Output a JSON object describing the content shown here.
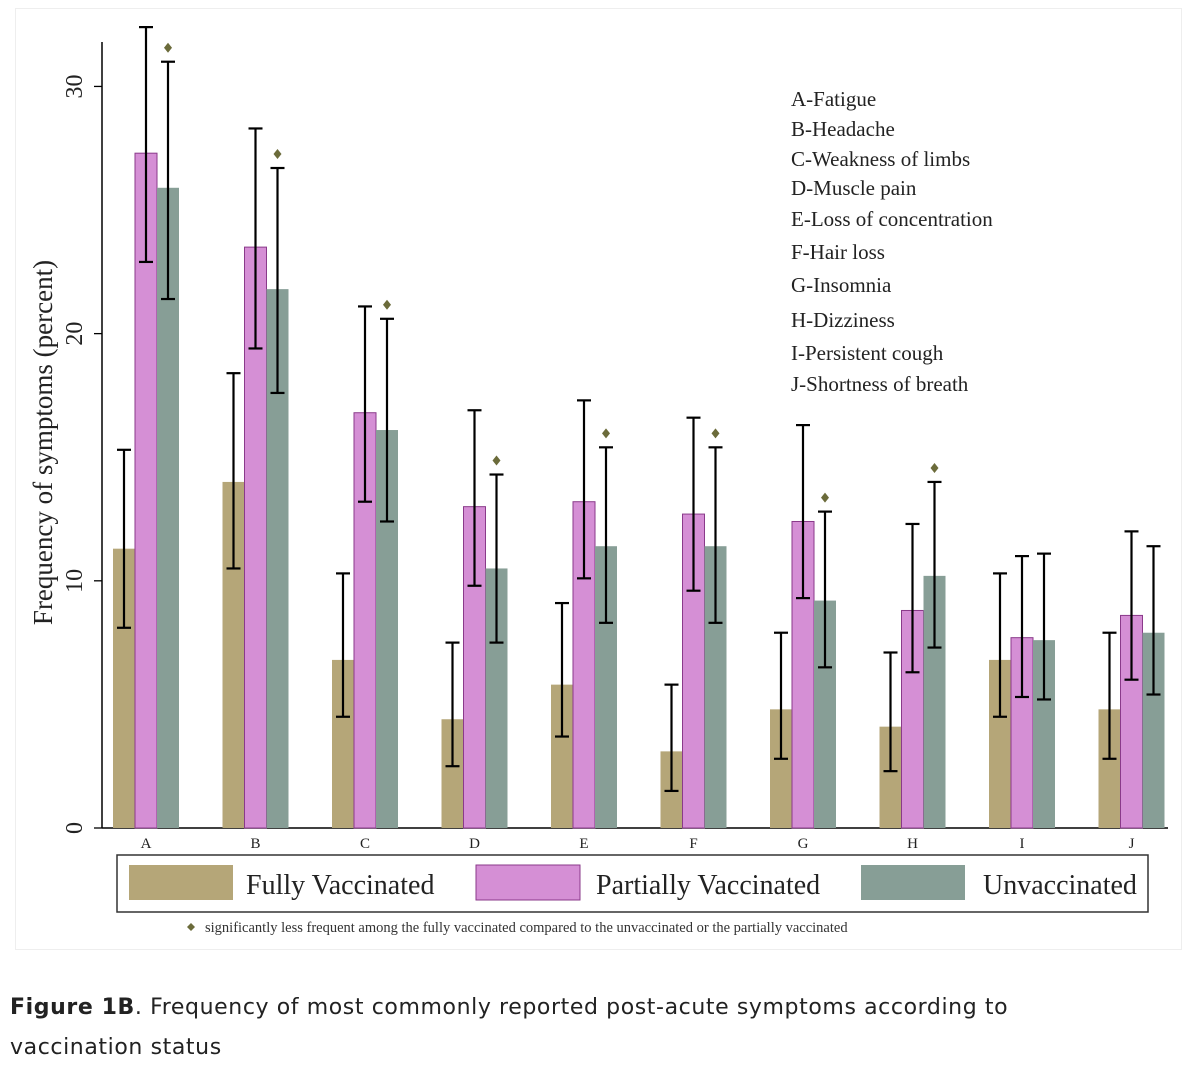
{
  "chart_data": {
    "type": "bar",
    "ylabel": "Frequency of symptoms (percent)",
    "ylim": [
      0,
      32
    ],
    "yticks": [
      0,
      10,
      20,
      30
    ],
    "categories": [
      "A",
      "B",
      "C",
      "D",
      "E",
      "F",
      "G",
      "H",
      "I",
      "J"
    ],
    "category_names": [
      "A-Fatigue",
      "B-Headache",
      "C-Weakness of limbs",
      "D-Muscle pain",
      "E-Loss of concentration",
      "F-Hair loss",
      "G-Insomnia",
      "H-Dizziness",
      "I-Persistent cough",
      "J-Shortness of breath"
    ],
    "series": [
      {
        "name": "Fully Vaccinated",
        "color": "#b5a678",
        "values": [
          11.3,
          14.0,
          6.8,
          4.4,
          5.8,
          3.1,
          4.8,
          4.1,
          6.8,
          4.8
        ],
        "ci_low": [
          8.1,
          10.5,
          4.5,
          2.5,
          3.7,
          1.5,
          2.8,
          2.3,
          4.5,
          2.8
        ],
        "ci_high": [
          15.3,
          18.4,
          10.3,
          7.5,
          9.1,
          5.8,
          7.9,
          7.1,
          10.3,
          7.9
        ]
      },
      {
        "name": "Partially Vaccinated",
        "color": "#d58fd5",
        "values": [
          27.3,
          23.5,
          16.8,
          13.0,
          13.2,
          12.7,
          12.4,
          8.8,
          7.7,
          8.6
        ],
        "ci_low": [
          22.9,
          19.4,
          13.2,
          9.8,
          10.1,
          9.6,
          9.3,
          6.3,
          5.3,
          6.0
        ],
        "ci_high": [
          32.4,
          28.3,
          21.1,
          16.9,
          17.3,
          16.6,
          16.3,
          12.3,
          11.0,
          12.0
        ]
      },
      {
        "name": "Unvaccinated",
        "color": "#879e96",
        "values": [
          25.9,
          21.8,
          16.1,
          10.5,
          11.4,
          11.4,
          9.2,
          10.2,
          7.6,
          7.9
        ],
        "ci_low": [
          21.4,
          17.6,
          12.4,
          7.5,
          8.3,
          8.3,
          6.5,
          7.3,
          5.2,
          5.4
        ],
        "ci_high": [
          31.0,
          26.7,
          20.6,
          14.3,
          15.4,
          15.4,
          12.8,
          14.0,
          11.1,
          11.4
        ]
      }
    ],
    "significant": [
      "A",
      "B",
      "C",
      "D",
      "E",
      "F",
      "G",
      "H"
    ],
    "legend_placement": "bottom",
    "footnote": "significantly less frequent among the fully vaccinated compared to the unvaccinated or the partially vaccinated",
    "axis_color": "#000000",
    "marker_color": "#6b6b3a"
  },
  "caption": {
    "label": "Figure 1B",
    "text": ". Frequency of most commonly reported post-acute symptoms according to vaccination status"
  }
}
